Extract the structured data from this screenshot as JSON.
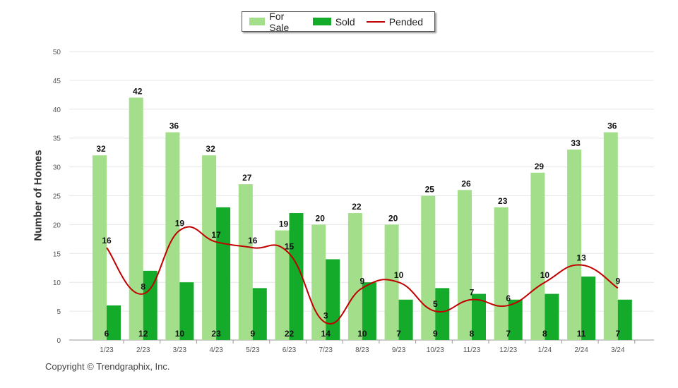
{
  "chart_data": {
    "type": "bar",
    "categories": [
      "1/23",
      "2/23",
      "3/23",
      "4/23",
      "5/23",
      "6/23",
      "7/23",
      "8/23",
      "9/23",
      "10/23",
      "11/23",
      "12/23",
      "1/24",
      "2/24",
      "3/24"
    ],
    "series": [
      {
        "name": "For Sale",
        "kind": "bar",
        "color": "#a3de8a",
        "values": [
          32,
          42,
          36,
          32,
          27,
          19,
          20,
          22,
          20,
          25,
          26,
          23,
          29,
          33,
          36
        ]
      },
      {
        "name": "Sold",
        "kind": "bar",
        "color": "#14ab2b",
        "values": [
          6,
          12,
          10,
          23,
          9,
          22,
          14,
          10,
          7,
          9,
          8,
          7,
          8,
          11,
          7
        ]
      },
      {
        "name": "Pended",
        "kind": "line",
        "color": "#c00000",
        "values": [
          16,
          8,
          19,
          17,
          16,
          15,
          3,
          9,
          10,
          5,
          7,
          6,
          10,
          13,
          9
        ]
      }
    ],
    "ylabel": "Number of Homes",
    "xlabel": "",
    "ylim": [
      0,
      50
    ],
    "yticks": [
      0,
      5,
      10,
      15,
      20,
      25,
      30,
      35,
      40,
      45,
      50
    ],
    "legend_position": "top-center"
  },
  "legend": {
    "for_sale": "For Sale",
    "sold": "Sold",
    "pended": "Pended"
  },
  "copyright": "Copyright © Trendgraphix, Inc."
}
